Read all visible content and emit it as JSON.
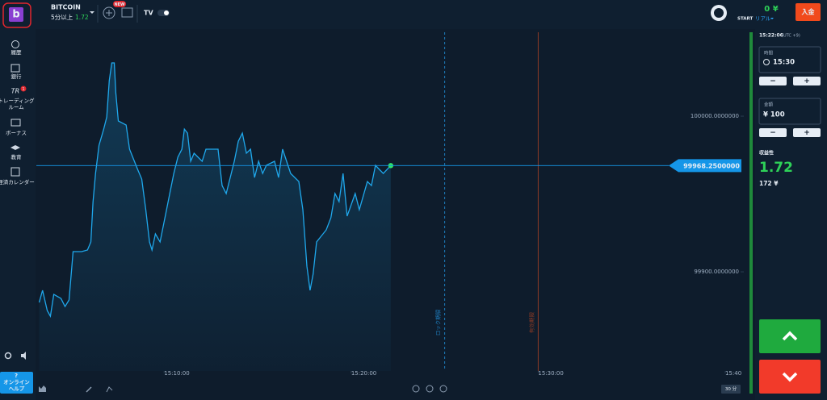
{
  "header": {
    "asset": "BITCOIN",
    "expiry_label": "5分以上",
    "payout": "1.72",
    "new_badge": "NEW",
    "balance": "0 ¥",
    "start": "START",
    "account": "リアル",
    "deposit": "入金"
  },
  "sidebar": {
    "items": [
      {
        "label": "履歴"
      },
      {
        "label": "銀行"
      },
      {
        "label": "トレーディング\nルーム",
        "badge": "1"
      },
      {
        "label": "ボーナス"
      },
      {
        "label": "教育"
      },
      {
        "label": "経済カレンダー"
      }
    ],
    "help_icon": "?",
    "help": "オンライン\nヘルプ"
  },
  "chart_data": {
    "type": "line",
    "color": "#1fa8ec",
    "x": [
      "15:03:19",
      "15:03:30",
      "15:03:45",
      "15:03:55",
      "15:04:06",
      "15:04:29",
      "15:04:42",
      "15:04:55",
      "15:05:08",
      "15:05:35",
      "15:05:54",
      "15:06:05",
      "15:06:12",
      "15:06:20",
      "15:06:31",
      "15:06:46",
      "15:06:56",
      "15:07:04",
      "15:07:12",
      "15:07:20",
      "15:07:25",
      "15:07:33",
      "15:07:58",
      "15:08:09",
      "15:08:35",
      "15:08:48",
      "15:09:01",
      "15:09:13",
      "15:09:21",
      "15:09:32",
      "15:09:47",
      "15:10:05",
      "15:10:18",
      "15:10:31",
      "15:10:44",
      "15:10:57",
      "15:11:05",
      "15:11:15",
      "15:11:25",
      "15:11:36",
      "15:12:02",
      "15:12:14",
      "15:12:53",
      "15:13:06",
      "15:13:19",
      "15:13:45",
      "15:13:58",
      "15:14:11",
      "15:14:24",
      "15:14:37",
      "15:14:50",
      "15:15:03",
      "15:15:16",
      "15:15:28",
      "15:15:54",
      "15:16:07",
      "15:16:20",
      "15:16:33",
      "15:16:46",
      "15:17:12",
      "15:17:25",
      "15:17:38",
      "15:17:48",
      "15:17:58",
      "15:18:09",
      "15:18:40",
      "15:18:55",
      "15:19:08",
      "15:19:21",
      "15:19:34",
      "15:19:47",
      "15:20:13",
      "15:20:26",
      "15:20:52",
      "15:21:05",
      "15:21:18",
      "15:21:30",
      "15:21:43",
      "15:22:07"
    ],
    "values": [
      99880.3,
      99888.1,
      99875.1,
      99871.5,
      99885.5,
      99882.9,
      99877.7,
      99881.9,
      99913.0,
      99913.0,
      99914.0,
      99919.2,
      99945.1,
      99963.2,
      99981.3,
      99991.7,
      99999.5,
      100022.8,
      100034.2,
      100034.2,
      100015.0,
      99996.9,
      99994.3,
      99978.8,
      99965.8,
      99959.6,
      99939.9,
      99919.2,
      99914.0,
      99924.4,
      99919.2,
      99937.3,
      99950.3,
      99963.2,
      99973.6,
      99978.8,
      99991.7,
      99989.1,
      99971.0,
      99976.2,
      99971.0,
      99978.8,
      99978.8,
      99955.4,
      99950.3,
      99971.0,
      99983.9,
      99989.1,
      99976.2,
      99978.8,
      99960.6,
      99971.0,
      99963.2,
      99968.4,
      99971.0,
      99960.6,
      99978.8,
      99971.0,
      99963.2,
      99958.0,
      99939.9,
      99903.6,
      99888.1,
      99898.5,
      99919.2,
      99926.9,
      99934.7,
      99950.3,
      99945.1,
      99963.2,
      99935.8,
      99950.3,
      99939.9,
      99958.0,
      99955.4,
      99968.4,
      99965.8,
      99963.2,
      99968.25
    ],
    "xlim": [
      "15:03:10",
      "15:41:10"
    ],
    "xticks": [
      "15:10:00",
      "15:20:00",
      "15:30:00",
      "15:40"
    ],
    "ylim": [
      99836.3,
      100053.9
    ],
    "yticks": [
      {
        "value": 100000,
        "label": "100000.0000000"
      },
      {
        "value": 99900,
        "label": "99900.0000000"
      }
    ],
    "current_price": {
      "value": 99968.25,
      "label": "99968.2500000",
      "color": "#1596e8"
    },
    "markers": [
      {
        "label": "ロック期限",
        "x": "15:25:00",
        "color": "#1e7fc0",
        "dashed": true
      },
      {
        "label": "有効期限",
        "x": "15:30:00",
        "color": "#8c3b26",
        "dashed": false
      }
    ],
    "zoom": "30 分"
  },
  "panel": {
    "clock": "15:22:06",
    "timezone": "(UTC +9)",
    "time_label": "時間",
    "time": "15:30",
    "minus": "−",
    "plus": "+",
    "amount_label": "金額",
    "amount": "¥ 100",
    "profit_label": "収益性",
    "profit_rate": "1.72",
    "profit": "172 ¥"
  }
}
